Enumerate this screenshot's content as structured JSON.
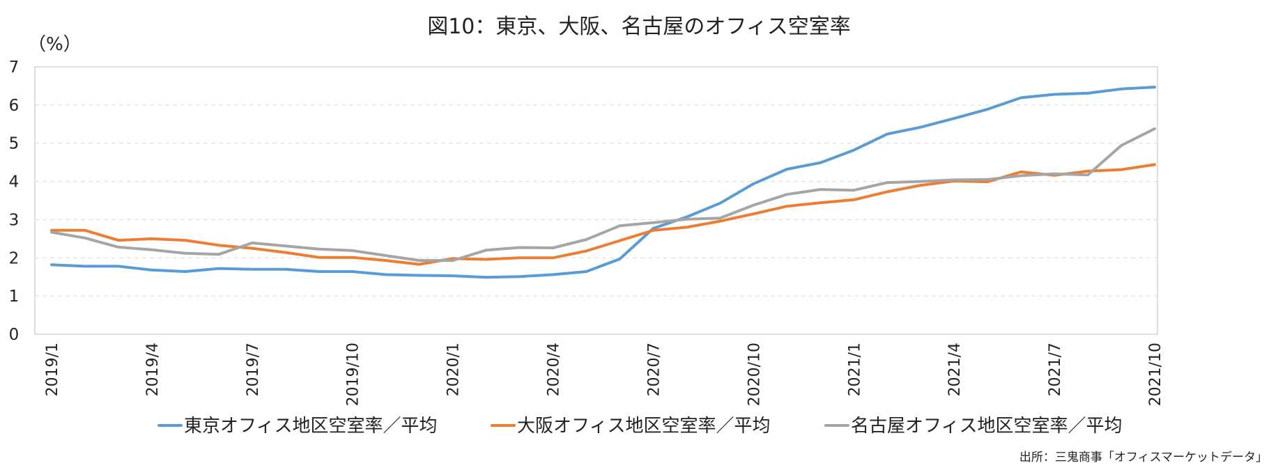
{
  "chart_data": {
    "type": "line",
    "title": "図10：東京、大阪、名古屋のオフィス空室率",
    "ylabel": "（%）",
    "ylim": [
      0,
      7
    ],
    "yticks": [
      0,
      1,
      2,
      3,
      4,
      5,
      6,
      7
    ],
    "x": [
      "2019/1",
      "2019/2",
      "2019/3",
      "2019/4",
      "2019/5",
      "2019/6",
      "2019/7",
      "2019/8",
      "2019/9",
      "2019/10",
      "2019/11",
      "2019/12",
      "2020/1",
      "2020/2",
      "2020/3",
      "2020/4",
      "2020/5",
      "2020/6",
      "2020/7",
      "2020/8",
      "2020/9",
      "2020/10",
      "2020/11",
      "2020/12",
      "2021/1",
      "2021/2",
      "2021/3",
      "2021/4",
      "2021/5",
      "2021/6",
      "2021/7",
      "2021/8",
      "2021/9",
      "2021/10"
    ],
    "xtick_labels": [
      "2019/1",
      "2019/4",
      "2019/7",
      "2019/10",
      "2020/1",
      "2020/4",
      "2020/7",
      "2020/10",
      "2021/1",
      "2021/4",
      "2021/7",
      "2021/10"
    ],
    "grid": true,
    "legend_position": "bottom",
    "series": [
      {
        "name": "東京オフィス地区空室率／平均",
        "color": "#5b9bd5",
        "values": [
          1.82,
          1.78,
          1.78,
          1.68,
          1.64,
          1.72,
          1.7,
          1.7,
          1.64,
          1.64,
          1.56,
          1.54,
          1.53,
          1.49,
          1.51,
          1.56,
          1.64,
          1.97,
          2.77,
          3.07,
          3.43,
          3.94,
          4.32,
          4.49,
          4.82,
          5.24,
          5.42,
          5.65,
          5.89,
          6.19,
          6.28,
          6.31,
          6.42,
          6.47
        ]
      },
      {
        "name": "大阪オフィス地区空室率／平均",
        "color": "#ed7d31",
        "values": [
          2.72,
          2.72,
          2.46,
          2.5,
          2.46,
          2.33,
          2.25,
          2.14,
          2.01,
          2.01,
          1.93,
          1.83,
          1.98,
          1.96,
          2.0,
          2.0,
          2.18,
          2.45,
          2.72,
          2.8,
          2.96,
          3.15,
          3.35,
          3.44,
          3.52,
          3.73,
          3.9,
          4.01,
          3.99,
          4.25,
          4.16,
          4.27,
          4.31,
          4.44
        ]
      },
      {
        "name": "名古屋オフィス地区空室率／平均",
        "color": "#a5a5a5",
        "values": [
          2.67,
          2.52,
          2.28,
          2.21,
          2.12,
          2.09,
          2.39,
          2.31,
          2.23,
          2.19,
          2.06,
          1.93,
          1.93,
          2.2,
          2.27,
          2.26,
          2.48,
          2.84,
          2.92,
          3.01,
          3.04,
          3.38,
          3.66,
          3.79,
          3.77,
          3.97,
          4.0,
          4.04,
          4.05,
          4.15,
          4.2,
          4.17,
          4.94,
          5.38
        ]
      }
    ]
  },
  "source_note": "出所：三鬼商事「オフィスマーケットデータ」"
}
